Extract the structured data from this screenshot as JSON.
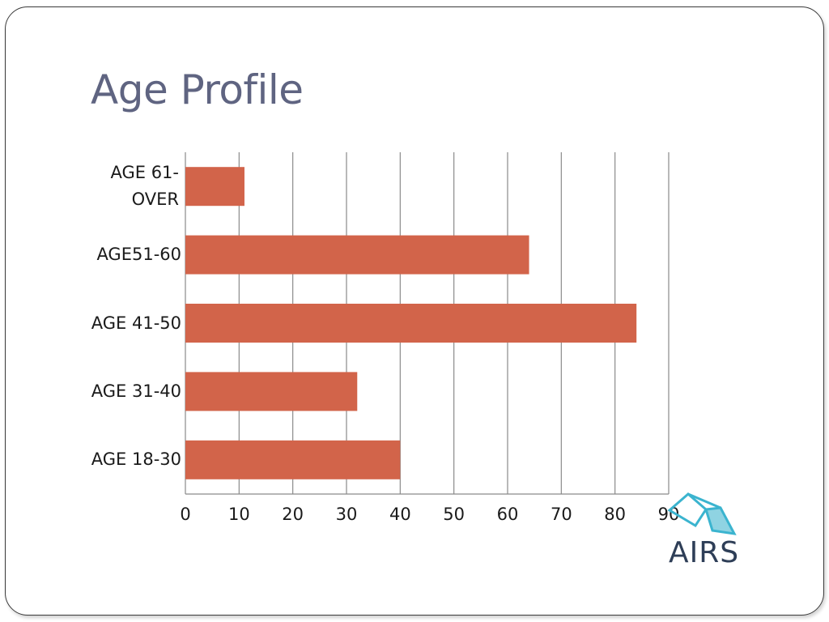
{
  "slide": {
    "title": "Age Profile"
  },
  "logo": {
    "text": "AIRS",
    "accent": "#3bb4cf",
    "text_color": "#2e3e57"
  },
  "chart_data": {
    "type": "bar",
    "orientation": "horizontal",
    "categories": [
      "AGE 18-30",
      "AGE 31-40",
      "AGE 41-50",
      "AGE51-60",
      "AGE 61-OVER"
    ],
    "values": [
      40,
      32,
      84,
      64,
      11
    ],
    "xlim": [
      0,
      90
    ],
    "xticks": [
      0,
      10,
      20,
      30,
      40,
      50,
      60,
      70,
      80,
      90
    ],
    "grid": "vertical",
    "bar_color": "#d2644a",
    "xlabel": "",
    "ylabel": ""
  }
}
